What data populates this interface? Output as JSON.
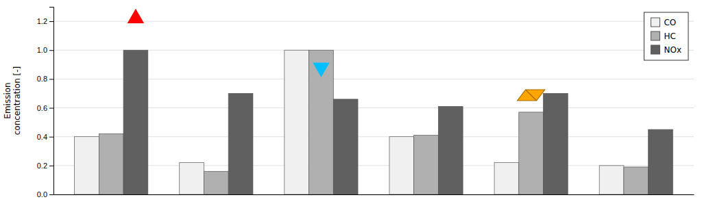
{
  "chart_data": {
    "type": "bar",
    "ylabel": "Emission\nconcentration [-]",
    "categories": [
      null,
      null,
      null,
      null,
      null,
      null
    ],
    "series": [
      {
        "name": "CO",
        "color": "#f0f0f0",
        "values": [
          0.4,
          0.22,
          1.0,
          0.4,
          0.22,
          0.2
        ]
      },
      {
        "name": "HC",
        "color": "#b0b0b0",
        "values": [
          0.42,
          0.16,
          1.0,
          0.41,
          0.57,
          0.19
        ]
      },
      {
        "name": "NOx",
        "color": "#606060",
        "values": [
          1.0,
          0.7,
          0.66,
          0.61,
          0.7,
          0.45
        ]
      }
    ],
    "ylim": [
      0.0,
      1.3
    ],
    "yticks": [
      {
        "value": 0.0,
        "label": "0.0"
      },
      {
        "value": 0.2,
        "label": "0.2"
      },
      {
        "value": 0.4,
        "label": "0.4"
      },
      {
        "value": 0.6,
        "label": "0.6"
      },
      {
        "value": 0.8,
        "label": "0.8"
      },
      {
        "value": 1.0,
        "label": "1.0"
      },
      {
        "value": 1.2,
        "label": "1.2"
      }
    ],
    "grid": true,
    "legend": "upper right",
    "tick_labels": "y",
    "annotations": [
      {
        "marker": "triangle-up",
        "color": "red",
        "category": 0,
        "series": "NOx",
        "y": 1.22
      },
      {
        "marker": "triangle-down",
        "color": "#00BFFF",
        "category": 2,
        "series": "HC",
        "y": 0.88
      },
      {
        "marker": "parallelogram",
        "color": "#FFA500",
        "category": 4,
        "series": "HC",
        "y": 0.65
      }
    ]
  }
}
